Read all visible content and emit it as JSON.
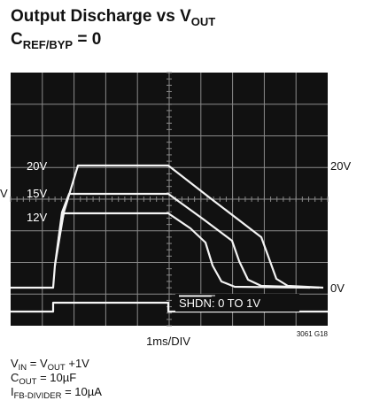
{
  "title": {
    "line1": {
      "text": "Output Discharge vs V",
      "sub": "OUT"
    },
    "line2": {
      "text": "C",
      "sub": "REF/BYP",
      "tail": " = 0"
    }
  },
  "scope": {
    "trace_labels": [
      "20V",
      "15V",
      "12V"
    ],
    "right_top": "20V",
    "right_bottom": "0V",
    "left_edge": "V",
    "shdn": {
      "name": "SHDN",
      "rest": ": 0 TO 1V"
    },
    "timebase": "1ms/DIV",
    "figure_id": "3061 G18"
  },
  "notes": [
    {
      "parts": [
        {
          "t": "V"
        },
        {
          "s": "IN"
        },
        {
          "t": " = V"
        },
        {
          "s": "OUT"
        },
        {
          "t": " +1V"
        }
      ]
    },
    {
      "parts": [
        {
          "t": "C"
        },
        {
          "s": "OUT"
        },
        {
          "t": " = 10µF"
        }
      ]
    },
    {
      "parts": [
        {
          "t": "I"
        },
        {
          "s": "FB-DIVIDER"
        },
        {
          "t": " = 10µA"
        }
      ]
    }
  ]
}
